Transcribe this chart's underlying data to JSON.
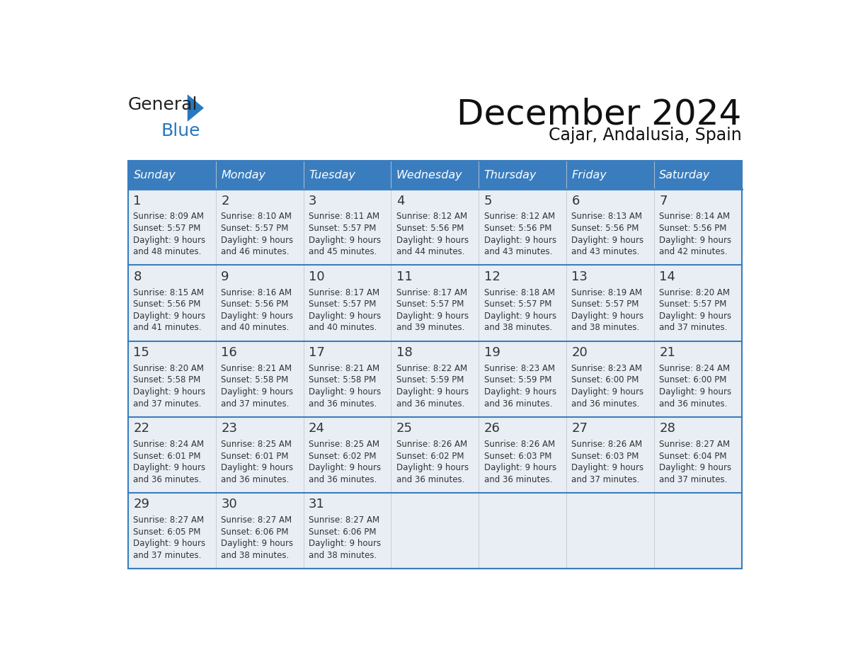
{
  "title": "December 2024",
  "subtitle": "Cajar, Andalusia, Spain",
  "header_bg": "#3a7dbf",
  "header_text": "#ffffff",
  "cell_bg": "#e8eef4",
  "cell_bg_last": "#e8eef4",
  "row_separator_color": "#3a7dbf",
  "text_color": "#333333",
  "day_names": [
    "Sunday",
    "Monday",
    "Tuesday",
    "Wednesday",
    "Thursday",
    "Friday",
    "Saturday"
  ],
  "days": [
    {
      "date": 1,
      "col": 0,
      "row": 0,
      "sunrise": "8:09 AM",
      "sunset": "5:57 PM",
      "daylight_h": "9 hours",
      "daylight_m": "48 minutes."
    },
    {
      "date": 2,
      "col": 1,
      "row": 0,
      "sunrise": "8:10 AM",
      "sunset": "5:57 PM",
      "daylight_h": "9 hours",
      "daylight_m": "46 minutes."
    },
    {
      "date": 3,
      "col": 2,
      "row": 0,
      "sunrise": "8:11 AM",
      "sunset": "5:57 PM",
      "daylight_h": "9 hours",
      "daylight_m": "45 minutes."
    },
    {
      "date": 4,
      "col": 3,
      "row": 0,
      "sunrise": "8:12 AM",
      "sunset": "5:56 PM",
      "daylight_h": "9 hours",
      "daylight_m": "44 minutes."
    },
    {
      "date": 5,
      "col": 4,
      "row": 0,
      "sunrise": "8:12 AM",
      "sunset": "5:56 PM",
      "daylight_h": "9 hours",
      "daylight_m": "43 minutes."
    },
    {
      "date": 6,
      "col": 5,
      "row": 0,
      "sunrise": "8:13 AM",
      "sunset": "5:56 PM",
      "daylight_h": "9 hours",
      "daylight_m": "43 minutes."
    },
    {
      "date": 7,
      "col": 6,
      "row": 0,
      "sunrise": "8:14 AM",
      "sunset": "5:56 PM",
      "daylight_h": "9 hours",
      "daylight_m": "42 minutes."
    },
    {
      "date": 8,
      "col": 0,
      "row": 1,
      "sunrise": "8:15 AM",
      "sunset": "5:56 PM",
      "daylight_h": "9 hours",
      "daylight_m": "41 minutes."
    },
    {
      "date": 9,
      "col": 1,
      "row": 1,
      "sunrise": "8:16 AM",
      "sunset": "5:56 PM",
      "daylight_h": "9 hours",
      "daylight_m": "40 minutes."
    },
    {
      "date": 10,
      "col": 2,
      "row": 1,
      "sunrise": "8:17 AM",
      "sunset": "5:57 PM",
      "daylight_h": "9 hours",
      "daylight_m": "40 minutes."
    },
    {
      "date": 11,
      "col": 3,
      "row": 1,
      "sunrise": "8:17 AM",
      "sunset": "5:57 PM",
      "daylight_h": "9 hours",
      "daylight_m": "39 minutes."
    },
    {
      "date": 12,
      "col": 4,
      "row": 1,
      "sunrise": "8:18 AM",
      "sunset": "5:57 PM",
      "daylight_h": "9 hours",
      "daylight_m": "38 minutes."
    },
    {
      "date": 13,
      "col": 5,
      "row": 1,
      "sunrise": "8:19 AM",
      "sunset": "5:57 PM",
      "daylight_h": "9 hours",
      "daylight_m": "38 minutes."
    },
    {
      "date": 14,
      "col": 6,
      "row": 1,
      "sunrise": "8:20 AM",
      "sunset": "5:57 PM",
      "daylight_h": "9 hours",
      "daylight_m": "37 minutes."
    },
    {
      "date": 15,
      "col": 0,
      "row": 2,
      "sunrise": "8:20 AM",
      "sunset": "5:58 PM",
      "daylight_h": "9 hours",
      "daylight_m": "37 minutes."
    },
    {
      "date": 16,
      "col": 1,
      "row": 2,
      "sunrise": "8:21 AM",
      "sunset": "5:58 PM",
      "daylight_h": "9 hours",
      "daylight_m": "37 minutes."
    },
    {
      "date": 17,
      "col": 2,
      "row": 2,
      "sunrise": "8:21 AM",
      "sunset": "5:58 PM",
      "daylight_h": "9 hours",
      "daylight_m": "36 minutes."
    },
    {
      "date": 18,
      "col": 3,
      "row": 2,
      "sunrise": "8:22 AM",
      "sunset": "5:59 PM",
      "daylight_h": "9 hours",
      "daylight_m": "36 minutes."
    },
    {
      "date": 19,
      "col": 4,
      "row": 2,
      "sunrise": "8:23 AM",
      "sunset": "5:59 PM",
      "daylight_h": "9 hours",
      "daylight_m": "36 minutes."
    },
    {
      "date": 20,
      "col": 5,
      "row": 2,
      "sunrise": "8:23 AM",
      "sunset": "6:00 PM",
      "daylight_h": "9 hours",
      "daylight_m": "36 minutes."
    },
    {
      "date": 21,
      "col": 6,
      "row": 2,
      "sunrise": "8:24 AM",
      "sunset": "6:00 PM",
      "daylight_h": "9 hours",
      "daylight_m": "36 minutes."
    },
    {
      "date": 22,
      "col": 0,
      "row": 3,
      "sunrise": "8:24 AM",
      "sunset": "6:01 PM",
      "daylight_h": "9 hours",
      "daylight_m": "36 minutes."
    },
    {
      "date": 23,
      "col": 1,
      "row": 3,
      "sunrise": "8:25 AM",
      "sunset": "6:01 PM",
      "daylight_h": "9 hours",
      "daylight_m": "36 minutes."
    },
    {
      "date": 24,
      "col": 2,
      "row": 3,
      "sunrise": "8:25 AM",
      "sunset": "6:02 PM",
      "daylight_h": "9 hours",
      "daylight_m": "36 minutes."
    },
    {
      "date": 25,
      "col": 3,
      "row": 3,
      "sunrise": "8:26 AM",
      "sunset": "6:02 PM",
      "daylight_h": "9 hours",
      "daylight_m": "36 minutes."
    },
    {
      "date": 26,
      "col": 4,
      "row": 3,
      "sunrise": "8:26 AM",
      "sunset": "6:03 PM",
      "daylight_h": "9 hours",
      "daylight_m": "36 minutes."
    },
    {
      "date": 27,
      "col": 5,
      "row": 3,
      "sunrise": "8:26 AM",
      "sunset": "6:03 PM",
      "daylight_h": "9 hours",
      "daylight_m": "37 minutes."
    },
    {
      "date": 28,
      "col": 6,
      "row": 3,
      "sunrise": "8:27 AM",
      "sunset": "6:04 PM",
      "daylight_h": "9 hours",
      "daylight_m": "37 minutes."
    },
    {
      "date": 29,
      "col": 0,
      "row": 4,
      "sunrise": "8:27 AM",
      "sunset": "6:05 PM",
      "daylight_h": "9 hours",
      "daylight_m": "37 minutes."
    },
    {
      "date": 30,
      "col": 1,
      "row": 4,
      "sunrise": "8:27 AM",
      "sunset": "6:06 PM",
      "daylight_h": "9 hours",
      "daylight_m": "38 minutes."
    },
    {
      "date": 31,
      "col": 2,
      "row": 4,
      "sunrise": "8:27 AM",
      "sunset": "6:06 PM",
      "daylight_h": "9 hours",
      "daylight_m": "38 minutes."
    }
  ],
  "num_rows": 5,
  "logo_color_general": "#222222",
  "logo_color_blue": "#2878c0",
  "logo_triangle_color": "#2878c0"
}
